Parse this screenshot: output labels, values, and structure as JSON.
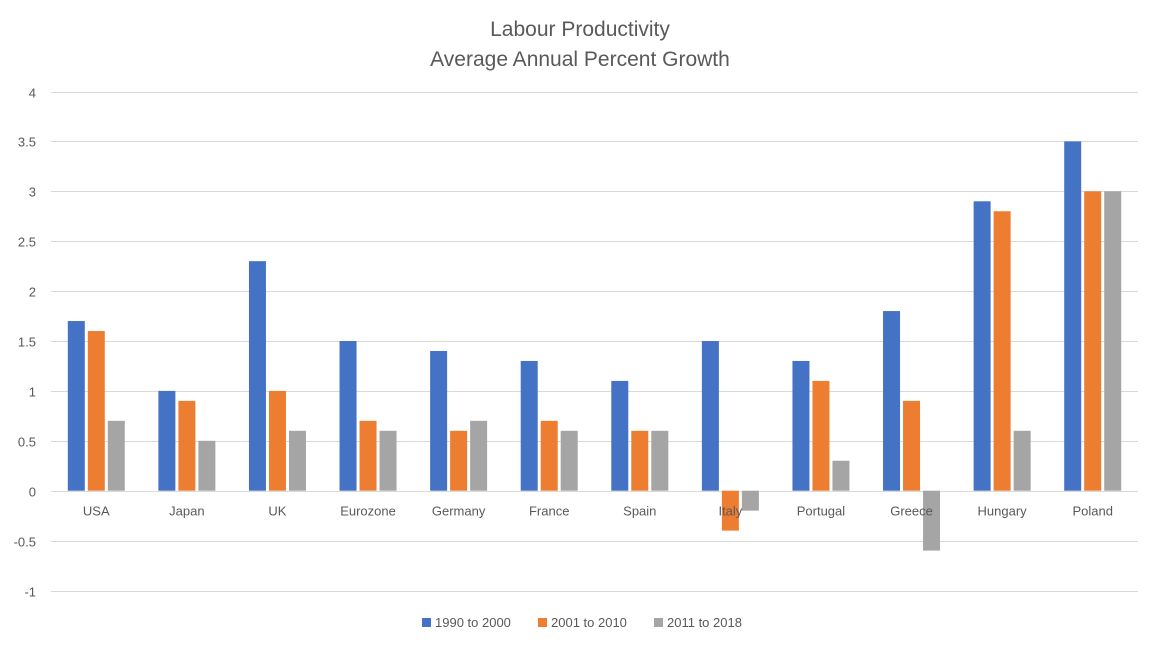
{
  "chart_data": {
    "type": "bar",
    "title": [
      "Labour Productivity",
      "Average Annual Percent Growth"
    ],
    "xlabel": "",
    "ylabel": "",
    "ylim": [
      -1,
      4
    ],
    "yticks": [
      -1,
      -0.5,
      0,
      0.5,
      1,
      1.5,
      2,
      2.5,
      3,
      3.5,
      4
    ],
    "ytick_labels": [
      "-1",
      "-0.5",
      "0",
      "0.5",
      "1",
      "1.5",
      "2",
      "2.5",
      "3",
      "3.5",
      "4"
    ],
    "grid": true,
    "legend_position": "bottom",
    "categories": [
      "USA",
      "Japan",
      "UK",
      "Eurozone",
      "Germany",
      "France",
      "Spain",
      "Italy",
      "Portugal",
      "Greece",
      "Hungary",
      "Poland"
    ],
    "series": [
      {
        "name": "1990 to 2000",
        "color": "#4472C4",
        "values": [
          1.7,
          1.0,
          2.3,
          1.5,
          1.4,
          1.3,
          1.1,
          1.5,
          1.3,
          1.8,
          2.9,
          3.5
        ]
      },
      {
        "name": "2001 to 2010",
        "color": "#ED7D31",
        "values": [
          1.6,
          0.9,
          1.0,
          0.7,
          0.6,
          0.7,
          0.6,
          -0.4,
          1.1,
          0.9,
          2.8,
          3.0
        ]
      },
      {
        "name": "2011 to 2018",
        "color": "#A5A5A5",
        "values": [
          0.7,
          0.5,
          0.6,
          0.6,
          0.7,
          0.6,
          0.6,
          -0.2,
          0.3,
          -0.6,
          0.6,
          3.0
        ]
      }
    ]
  },
  "colors": {
    "grid": "#D9D9D9",
    "text": "#595959"
  }
}
